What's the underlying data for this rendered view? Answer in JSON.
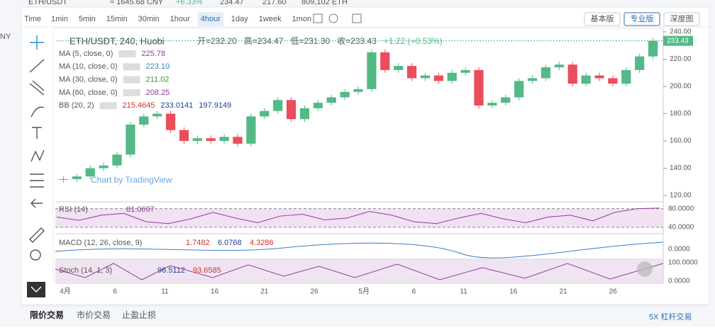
{
  "header": {
    "pair": "ETH/USDT",
    "cny": "≈ 1645.68 CNY",
    "change": "+6.33%",
    "high": "234.47",
    "low": "217.60",
    "volume": "809,102 ETH"
  },
  "toolbar": {
    "label": "Time",
    "intervals": [
      "1min",
      "5min",
      "15min",
      "30min",
      "1hour",
      "4hour",
      "1day",
      "1week",
      "1mon"
    ],
    "active": 5,
    "views": [
      "基本版",
      "专业版",
      "深度图"
    ],
    "active_view": 1
  },
  "side_text": "NY",
  "legend": {
    "symbol": "ETH/USDT, 240, Huobi",
    "ohlc": [
      "开=232.20",
      "高=234.47",
      "低=231.30",
      "收=233.43",
      "+1.22 (+0.53%)"
    ],
    "indicators": [
      {
        "name": "MA (5, close, 0)",
        "values": [
          "225.78"
        ],
        "colors": [
          "#8e3f99"
        ]
      },
      {
        "name": "MA (10, close, 0)",
        "values": [
          "223.10"
        ],
        "colors": [
          "#3d7ac4"
        ]
      },
      {
        "name": "MA (30, close, 0)",
        "values": [
          "211.02"
        ],
        "colors": [
          "#3a8f3a"
        ]
      },
      {
        "name": "MA (60, close, 0)",
        "values": [
          "208.25"
        ],
        "colors": [
          "#8e3f99"
        ]
      },
      {
        "name": "BB (20, 2)",
        "values": [
          "215.4645",
          "233.0141",
          "197.9149"
        ],
        "colors": [
          "#d0342c",
          "#1f3f99",
          "#1f3f99"
        ]
      }
    ]
  },
  "chart": {
    "closes": [
      132,
      134,
      140,
      142,
      150,
      172,
      178,
      180,
      168,
      160,
      162,
      160,
      163,
      158,
      178,
      182,
      190,
      176,
      184,
      188,
      192,
      196,
      198,
      225,
      212,
      215,
      206,
      208,
      204,
      210,
      212,
      186,
      188,
      192,
      204,
      206,
      214,
      216,
      202,
      208,
      206,
      202,
      212,
      222,
      233.43
    ],
    "ylim": [
      116.4,
      242.6
    ],
    "yticks": [
      {
        "value": 120,
        "label": "120.00"
      },
      {
        "value": 140,
        "label": "140.00"
      },
      {
        "value": 160,
        "label": "160.00"
      },
      {
        "value": 180,
        "label": "180.00"
      },
      {
        "value": 200,
        "label": "200.00"
      },
      {
        "value": 220,
        "label": "220.00"
      },
      {
        "value": 240,
        "label": "240.00"
      }
    ],
    "last_price": 233.43,
    "up_color": "#53b987",
    "down_color": "#eb4d5c",
    "xlabels": [
      "4月",
      "6",
      "11",
      "16",
      "21",
      "26",
      "5月",
      "6",
      "11",
      "16",
      "21",
      "26"
    ],
    "watermark": "Chart by TradingView"
  },
  "rsi": {
    "label": "RSI (14)",
    "value": "81.0697",
    "values": [
      62,
      55,
      66,
      70,
      52,
      48,
      58,
      72,
      60,
      50,
      64,
      68,
      56,
      60,
      74,
      66,
      52,
      48,
      60,
      70,
      58,
      50,
      62,
      66,
      54,
      72,
      80,
      81.0697
    ],
    "ylim": [
      31,
      90
    ],
    "ticks": [
      {
        "value": 80,
        "label": "80.0000"
      },
      {
        "value": 40,
        "label": "40.0000"
      }
    ]
  },
  "macd": {
    "label": "MACD (12, 26, close, 9)",
    "values": [
      "1.7482",
      "6.0768",
      "4.3286"
    ],
    "ticks": [
      "0.0000"
    ]
  },
  "stoch": {
    "label": "Stoch (14, 1, 3)",
    "values": [
      "96.5112",
      "93.6585"
    ],
    "ticks": [
      "100.0000",
      "0.0000"
    ]
  },
  "bottom": {
    "tabs": [
      "限价交易",
      "市价交易",
      "止盈止损"
    ],
    "margin": "5X 杠杆交易"
  }
}
